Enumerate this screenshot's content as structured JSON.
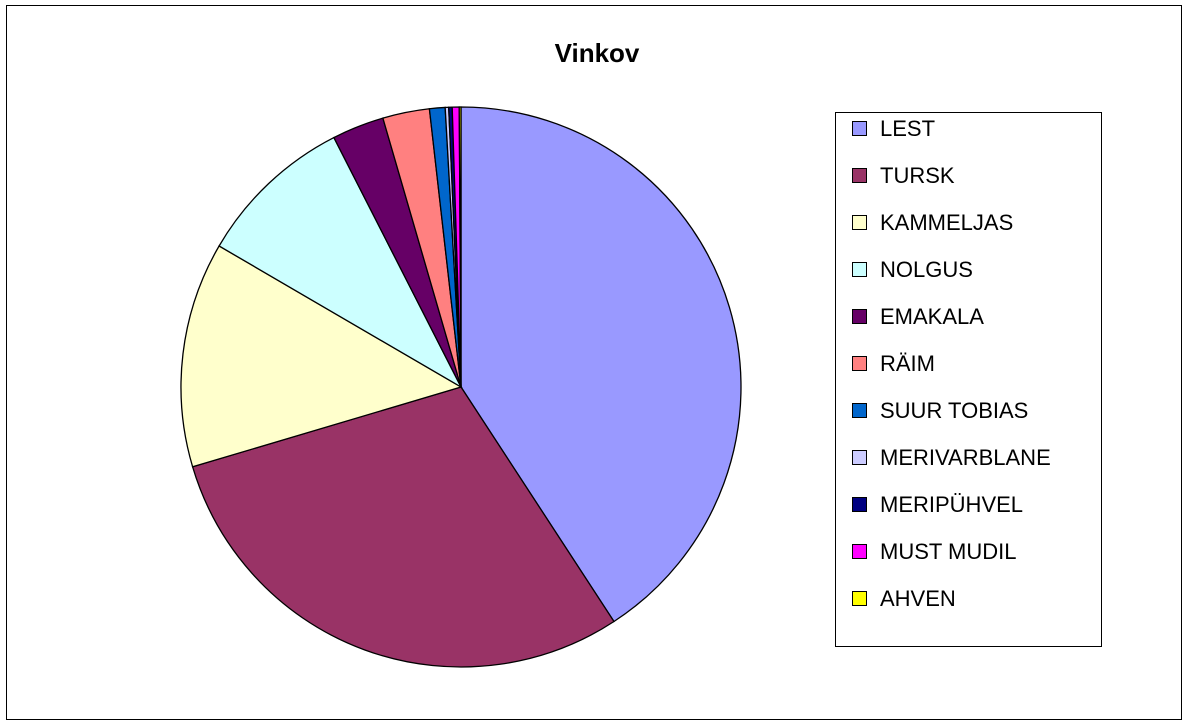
{
  "chart_data": {
    "type": "pie",
    "title": "Vinkov",
    "categories": [
      "LEST",
      "TURSK",
      "KAMMELJAS",
      "NOLGUS",
      "EMAKALA",
      "RÄIM",
      "SUUR TOBIAS",
      "MERIVARBLANE",
      "MERIPÜHVEL",
      "MUST MUDIL",
      "AHVEN"
    ],
    "values": [
      40.8,
      29.6,
      13.0,
      9.1,
      3.0,
      2.7,
      0.9,
      0.2,
      0.2,
      0.4,
      0.1
    ],
    "colors": [
      "#9999ff",
      "#993366",
      "#ffffcc",
      "#ccffff",
      "#660066",
      "#ff8080",
      "#0066cc",
      "#ccccff",
      "#000080",
      "#ff00ff",
      "#ffff00"
    ],
    "legend": "right"
  }
}
